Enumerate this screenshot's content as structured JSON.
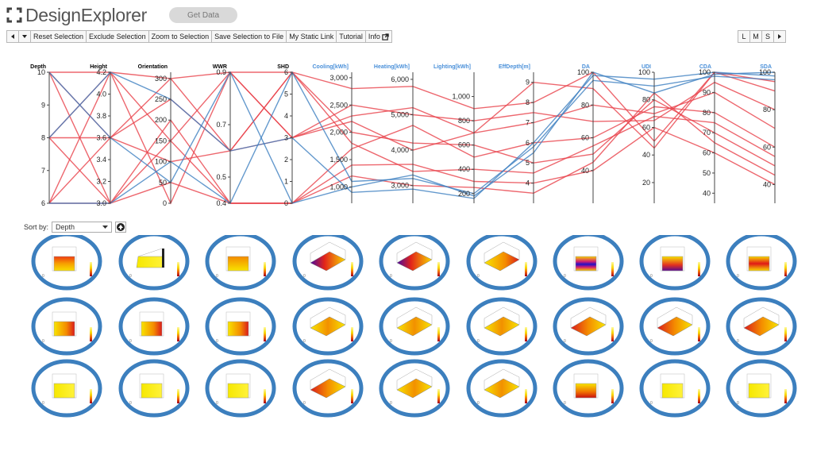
{
  "header": {
    "title": "DesignExplorer",
    "get_data_label": "Get Data"
  },
  "toolbar": {
    "back_icon": "triangle-left-icon",
    "menu_icon": "triangle-down-icon",
    "buttons": [
      {
        "label": "Reset Selection"
      },
      {
        "label": "Exclude Selection"
      },
      {
        "label": "Zoom to Selection"
      },
      {
        "label": "Save Selection to File"
      },
      {
        "label": "My Static Link"
      },
      {
        "label": "Tutorial"
      },
      {
        "label": "Info"
      }
    ],
    "info_icon": "external-link-icon",
    "size_buttons": [
      {
        "label": "L"
      },
      {
        "label": "M"
      },
      {
        "label": "S"
      }
    ],
    "next_icon": "triangle-right-icon"
  },
  "colors": {
    "red": "#e8414a",
    "blue": "#3d7fc1",
    "axis_label": "#4a90d9",
    "circle_border": "#3c7fbe"
  },
  "chart_data": {
    "type": "parallel-coordinates",
    "axes": [
      {
        "name": "Depth",
        "label_color": "#000000",
        "range": [
          6,
          10
        ],
        "ticks": [
          "10",
          "9",
          "8",
          "7",
          "6"
        ],
        "tick_values": [
          10,
          9,
          8,
          7,
          6
        ]
      },
      {
        "name": "Height",
        "label_color": "#000000",
        "range": [
          3.0,
          4.2
        ],
        "ticks": [
          "4.2",
          "4.0",
          "3.8",
          "3.6",
          "3.4",
          "3.2",
          "3.0"
        ],
        "tick_values": [
          4.2,
          4.0,
          3.8,
          3.6,
          3.4,
          3.2,
          3.0
        ]
      },
      {
        "name": "Orientation",
        "label_color": "#000000",
        "range": [
          0,
          315
        ],
        "ticks": [
          "300",
          "250",
          "200",
          "150",
          "100",
          "50",
          "0"
        ],
        "tick_values": [
          300,
          250,
          200,
          150,
          100,
          50,
          0
        ]
      },
      {
        "name": "WWR",
        "label_color": "#000000",
        "range": [
          0.4,
          0.9
        ],
        "ticks": [
          "0.9",
          "0.7",
          "0.5",
          "0.4"
        ],
        "tick_values": [
          0.9,
          0.7,
          0.5,
          0.4
        ]
      },
      {
        "name": "SHD",
        "label_color": "#000000",
        "range": [
          0,
          6
        ],
        "ticks": [
          "6",
          "5",
          "4",
          "3",
          "2",
          "1",
          "0"
        ],
        "tick_values": [
          6,
          5,
          4,
          3,
          2,
          1,
          0
        ]
      },
      {
        "name": "Cooling[kWh]",
        "label_color": "#4a90d9",
        "range": [
          700,
          3100
        ],
        "ticks": [
          "3,000",
          "2,500",
          "2,000",
          "1,500",
          "1,000"
        ],
        "tick_values": [
          3000,
          2500,
          2000,
          1500,
          1000
        ]
      },
      {
        "name": "Heating[kWh]",
        "label_color": "#4a90d9",
        "range": [
          2500,
          6200
        ],
        "ticks": [
          "6,000",
          "5,000",
          "4,000",
          "3,000"
        ],
        "tick_values": [
          6000,
          5000,
          4000,
          3000
        ]
      },
      {
        "name": "Lighting[kWh]",
        "label_color": "#4a90d9",
        "range": [
          120,
          1200
        ],
        "ticks": [
          "1,000",
          "800",
          "600",
          "400",
          "200"
        ],
        "tick_values": [
          1000,
          800,
          600,
          400,
          200
        ]
      },
      {
        "name": "EffDepth[m]",
        "label_color": "#4a90d9",
        "range": [
          3,
          9.5
        ],
        "ticks": [
          "9",
          "8",
          "7",
          "6",
          "5",
          "4"
        ],
        "tick_values": [
          9,
          8,
          7,
          6,
          5,
          4
        ]
      },
      {
        "name": "DA",
        "label_color": "#4a90d9",
        "range": [
          20,
          100
        ],
        "ticks": [
          "100",
          "80",
          "60",
          "40"
        ],
        "tick_values": [
          100,
          80,
          60,
          40
        ]
      },
      {
        "name": "UDI",
        "label_color": "#4a90d9",
        "range": [
          5,
          100
        ],
        "ticks": [
          "100",
          "80",
          "60",
          "40",
          "20"
        ],
        "tick_values": [
          100,
          80,
          60,
          40,
          20
        ]
      },
      {
        "name": "CDA",
        "label_color": "#4a90d9",
        "range": [
          35,
          100
        ],
        "ticks": [
          "100",
          "90",
          "80",
          "70",
          "60",
          "50",
          "40"
        ],
        "tick_values": [
          100,
          90,
          80,
          70,
          60,
          50,
          40
        ]
      },
      {
        "name": "SDA",
        "label_color": "#4a90d9",
        "range": [
          30,
          100
        ],
        "ticks": [
          "100",
          "80",
          "60",
          "40"
        ],
        "tick_values": [
          100,
          80,
          60,
          40
        ]
      }
    ],
    "series": [
      {
        "values": [
          10,
          4.2,
          300,
          0.9,
          6,
          2800,
          5800,
          900,
          8,
          100,
          50,
          100,
          90
        ]
      },
      {
        "values": [
          10,
          3.6,
          250,
          0.6,
          3,
          2300,
          5200,
          700,
          7,
          80,
          70,
          90,
          70
        ]
      },
      {
        "values": [
          10,
          3.0,
          200,
          0.4,
          0,
          1700,
          4700,
          500,
          6,
          60,
          75,
          80,
          60
        ]
      },
      {
        "values": [
          8,
          4.2,
          150,
          0.9,
          3,
          2500,
          5000,
          800,
          7.5,
          70,
          65,
          95,
          80
        ]
      },
      {
        "values": [
          8,
          3.6,
          100,
          0.6,
          6,
          2000,
          4200,
          600,
          5,
          50,
          80,
          70,
          50
        ]
      },
      {
        "values": [
          8,
          3.0,
          50,
          0.4,
          0,
          1400,
          3600,
          300,
          4,
          40,
          60,
          60,
          40
        ]
      },
      {
        "values": [
          6,
          4.2,
          0,
          0.9,
          3,
          2200,
          4000,
          700,
          9,
          90,
          45,
          100,
          95
        ]
      },
      {
        "values": [
          6,
          3.6,
          300,
          0.6,
          6,
          1800,
          3400,
          400,
          4.5,
          55,
          68,
          75,
          55
        ]
      },
      {
        "values": [
          6,
          3.0,
          150,
          0.4,
          0,
          1200,
          3000,
          250,
          3.5,
          45,
          85,
          65,
          45
        ]
      },
      {
        "values": [
          10,
          3.6,
          50,
          0.9,
          0,
          1000,
          3300,
          180,
          5.5,
          100,
          85,
          99,
          100
        ]
      },
      {
        "values": [
          8,
          4.2,
          250,
          0.6,
          3,
          900,
          2900,
          160,
          6,
          98,
          95,
          100,
          98
        ]
      },
      {
        "values": [
          6,
          3.0,
          100,
          0.4,
          6,
          1100,
          3200,
          200,
          5.8,
          95,
          90,
          98,
          96
        ]
      }
    ]
  },
  "sort": {
    "label": "Sort by:",
    "selected": "Depth",
    "direction_icon": "arrow-up-circle-icon"
  },
  "thumbnails": [
    {
      "view": "front",
      "heat": "red-top"
    },
    {
      "view": "side",
      "heat": "yellow"
    },
    {
      "view": "front",
      "heat": "orange-top"
    },
    {
      "view": "iso",
      "heat": "purple-left"
    },
    {
      "view": "iso",
      "heat": "purple-left"
    },
    {
      "view": "iso",
      "heat": "red-right"
    },
    {
      "view": "front",
      "heat": "blue-middle"
    },
    {
      "view": "front",
      "heat": "purple-bottom"
    },
    {
      "view": "front",
      "heat": "red-middle"
    },
    {
      "view": "front",
      "heat": "red-right"
    },
    {
      "view": "front",
      "heat": "red-right"
    },
    {
      "view": "front",
      "heat": "red-right"
    },
    {
      "view": "iso",
      "heat": "orange-center"
    },
    {
      "view": "iso",
      "heat": "orange-center"
    },
    {
      "view": "iso",
      "heat": "orange-center"
    },
    {
      "view": "iso",
      "heat": "red-left"
    },
    {
      "view": "iso",
      "heat": "red-left"
    },
    {
      "view": "iso",
      "heat": "red-left"
    },
    {
      "view": "front",
      "heat": "yellow"
    },
    {
      "view": "front",
      "heat": "yellow"
    },
    {
      "view": "front",
      "heat": "yellow"
    },
    {
      "view": "iso",
      "heat": "red-left"
    },
    {
      "view": "iso",
      "heat": "orange-center"
    },
    {
      "view": "iso",
      "heat": "orange-center"
    },
    {
      "view": "front",
      "heat": "red-bottom"
    },
    {
      "view": "front",
      "heat": "yellow"
    },
    {
      "view": "front",
      "heat": "yellow"
    }
  ]
}
